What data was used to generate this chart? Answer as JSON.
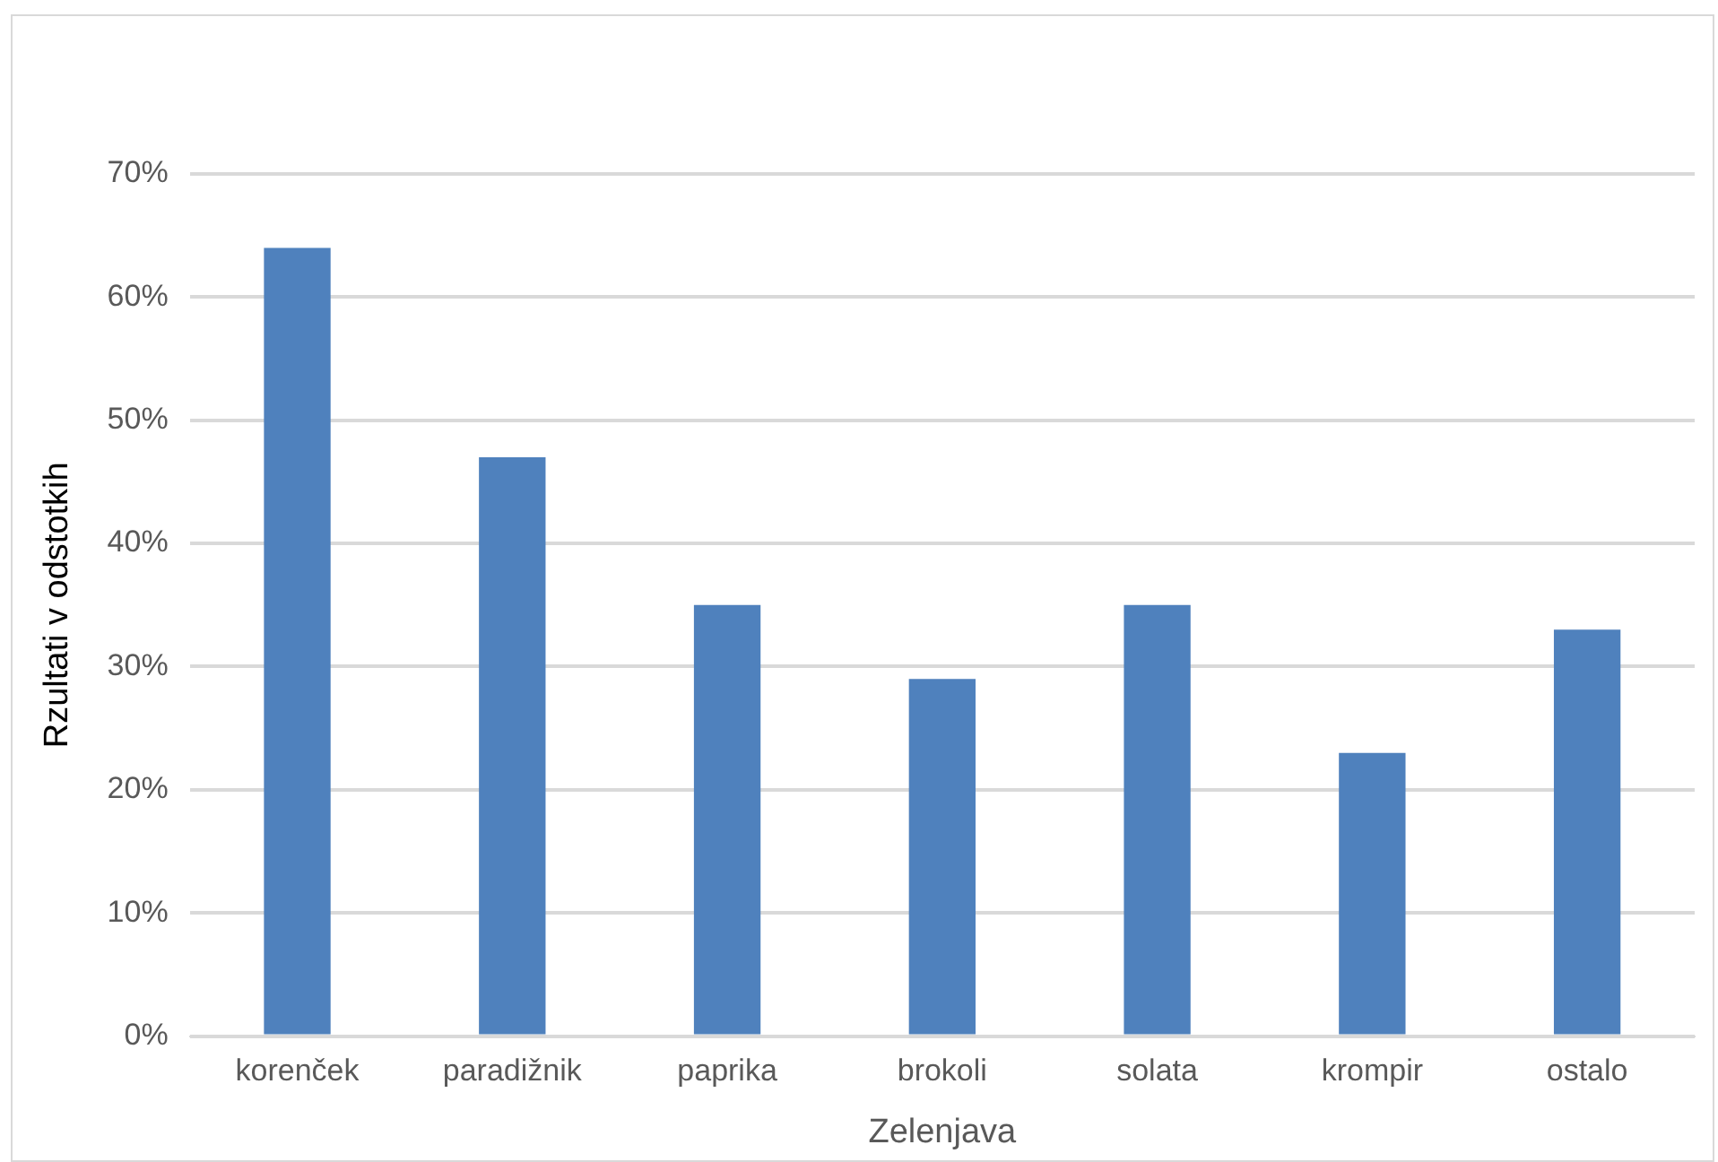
{
  "chart_data": {
    "type": "bar",
    "xlabel": "Zelenjava",
    "ylabel": "Rzultati v odstotkih",
    "categories": [
      "korenček",
      "paradižnik",
      "paprika",
      "brokoli",
      "solata",
      "krompir",
      "ostalo"
    ],
    "values": [
      64,
      47,
      35,
      29,
      35,
      23,
      33
    ],
    "color": "#4f81bd",
    "ylim": [
      0,
      70
    ],
    "yticks": [
      {
        "value": 0,
        "label": "0%"
      },
      {
        "value": 10,
        "label": "10%"
      },
      {
        "value": 20,
        "label": "20%"
      },
      {
        "value": 30,
        "label": "30%"
      },
      {
        "value": 40,
        "label": "40%"
      },
      {
        "value": 50,
        "label": "50%"
      },
      {
        "value": 60,
        "label": "60%"
      },
      {
        "value": 70,
        "label": "70%"
      }
    ],
    "grid": "y",
    "legend": false
  }
}
